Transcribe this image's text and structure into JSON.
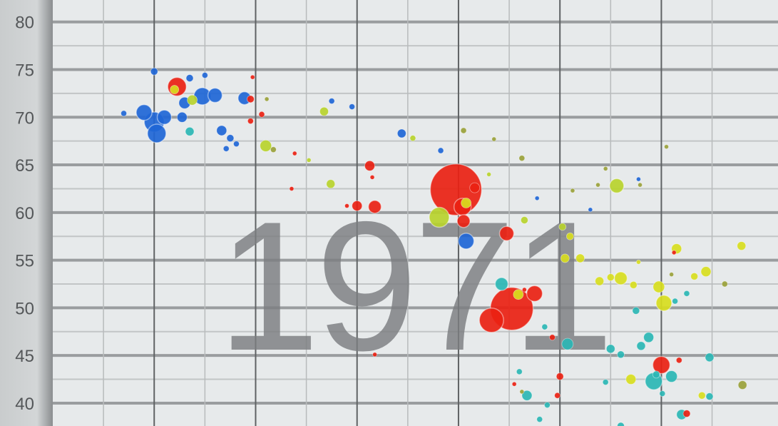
{
  "chart_data": {
    "type": "scatter",
    "year_label": "1971",
    "y_ticks": [
      "80",
      "75",
      "70",
      "65",
      "60",
      "55",
      "50",
      "45",
      "40"
    ],
    "ylim": [
      37.6,
      82.3
    ],
    "xlim": [
      0,
      14.3
    ],
    "grid": true,
    "colors": {
      "blue": "#1f66d6",
      "red": "#ea2112",
      "yellow": "#d8dd1e",
      "lime": "#b8d22c",
      "teal": "#2bb6b4",
      "olive": "#9aa13a"
    },
    "points": [
      {
        "x": 1.8,
        "y": 70.5,
        "r": 11,
        "c": "blue"
      },
      {
        "x": 2.0,
        "y": 69.5,
        "r": 14,
        "c": "blue"
      },
      {
        "x": 2.05,
        "y": 68.3,
        "r": 13,
        "c": "blue"
      },
      {
        "x": 2.2,
        "y": 70.0,
        "r": 10,
        "c": "blue"
      },
      {
        "x": 2.45,
        "y": 73.2,
        "r": 13,
        "c": "red"
      },
      {
        "x": 2.4,
        "y": 72.9,
        "r": 6,
        "c": "yellow"
      },
      {
        "x": 2.6,
        "y": 71.5,
        "r": 8,
        "c": "blue"
      },
      {
        "x": 2.75,
        "y": 71.8,
        "r": 7,
        "c": "lime"
      },
      {
        "x": 2.95,
        "y": 72.2,
        "r": 12,
        "c": "blue"
      },
      {
        "x": 3.2,
        "y": 72.3,
        "r": 10,
        "c": "blue"
      },
      {
        "x": 2.55,
        "y": 70.0,
        "r": 7,
        "c": "blue"
      },
      {
        "x": 2.7,
        "y": 68.5,
        "r": 6,
        "c": "teal"
      },
      {
        "x": 1.4,
        "y": 70.4,
        "r": 4,
        "c": "blue"
      },
      {
        "x": 2.0,
        "y": 74.8,
        "r": 5,
        "c": "blue"
      },
      {
        "x": 2.7,
        "y": 74.1,
        "r": 5,
        "c": "blue"
      },
      {
        "x": 3.0,
        "y": 74.4,
        "r": 4,
        "c": "blue"
      },
      {
        "x": 3.78,
        "y": 72.0,
        "r": 9,
        "c": "blue"
      },
      {
        "x": 3.9,
        "y": 71.9,
        "r": 5,
        "c": "red"
      },
      {
        "x": 4.22,
        "y": 71.9,
        "r": 3,
        "c": "olive"
      },
      {
        "x": 3.33,
        "y": 68.6,
        "r": 7,
        "c": "blue"
      },
      {
        "x": 3.5,
        "y": 67.8,
        "r": 5,
        "c": "blue"
      },
      {
        "x": 3.62,
        "y": 67.2,
        "r": 4,
        "c": "blue"
      },
      {
        "x": 3.42,
        "y": 66.7,
        "r": 4,
        "c": "blue"
      },
      {
        "x": 3.9,
        "y": 69.6,
        "r": 4,
        "c": "red"
      },
      {
        "x": 4.12,
        "y": 70.3,
        "r": 4,
        "c": "red"
      },
      {
        "x": 4.2,
        "y": 67.0,
        "r": 8,
        "c": "lime"
      },
      {
        "x": 4.35,
        "y": 66.6,
        "r": 4,
        "c": "olive"
      },
      {
        "x": 3.94,
        "y": 74.2,
        "r": 3,
        "c": "red"
      },
      {
        "x": 5.35,
        "y": 70.6,
        "r": 6,
        "c": "lime"
      },
      {
        "x": 5.5,
        "y": 71.7,
        "r": 4,
        "c": "blue"
      },
      {
        "x": 5.9,
        "y": 71.1,
        "r": 4,
        "c": "blue"
      },
      {
        "x": 4.77,
        "y": 66.2,
        "r": 3,
        "c": "red"
      },
      {
        "x": 5.05,
        "y": 65.5,
        "r": 3,
        "c": "lime"
      },
      {
        "x": 4.71,
        "y": 62.5,
        "r": 3,
        "c": "red"
      },
      {
        "x": 5.48,
        "y": 63.0,
        "r": 6,
        "c": "lime"
      },
      {
        "x": 5.8,
        "y": 60.7,
        "r": 3,
        "c": "red"
      },
      {
        "x": 6.0,
        "y": 60.7,
        "r": 7,
        "c": "red"
      },
      {
        "x": 6.35,
        "y": 60.6,
        "r": 9,
        "c": "red"
      },
      {
        "x": 6.25,
        "y": 64.9,
        "r": 7,
        "c": "red"
      },
      {
        "x": 6.3,
        "y": 63.7,
        "r": 3,
        "c": "red"
      },
      {
        "x": 6.35,
        "y": 45.1,
        "r": 3,
        "c": "red"
      },
      {
        "x": 6.88,
        "y": 68.3,
        "r": 6,
        "c": "blue"
      },
      {
        "x": 7.1,
        "y": 67.8,
        "r": 4,
        "c": "lime"
      },
      {
        "x": 7.65,
        "y": 66.5,
        "r": 4,
        "c": "blue"
      },
      {
        "x": 7.95,
        "y": 62.4,
        "r": 36,
        "c": "red"
      },
      {
        "x": 8.08,
        "y": 60.6,
        "r": 12,
        "c": "red"
      },
      {
        "x": 7.62,
        "y": 59.5,
        "r": 14,
        "c": "lime"
      },
      {
        "x": 8.15,
        "y": 61.0,
        "r": 7,
        "c": "yellow"
      },
      {
        "x": 8.1,
        "y": 59.1,
        "r": 9,
        "c": "red"
      },
      {
        "x": 8.32,
        "y": 62.6,
        "r": 7,
        "c": "red"
      },
      {
        "x": 8.15,
        "y": 57.0,
        "r": 11,
        "c": "blue"
      },
      {
        "x": 8.1,
        "y": 68.6,
        "r": 4,
        "c": "olive"
      },
      {
        "x": 8.6,
        "y": 64.0,
        "r": 3,
        "c": "lime"
      },
      {
        "x": 8.7,
        "y": 67.7,
        "r": 3,
        "c": "olive"
      },
      {
        "x": 8.95,
        "y": 57.8,
        "r": 10,
        "c": "red"
      },
      {
        "x": 8.85,
        "y": 52.5,
        "r": 9,
        "c": "teal"
      },
      {
        "x": 9.3,
        "y": 51.9,
        "r": 3,
        "c": "red"
      },
      {
        "x": 9.05,
        "y": 49.9,
        "r": 30,
        "c": "red"
      },
      {
        "x": 8.65,
        "y": 48.7,
        "r": 17,
        "c": "red"
      },
      {
        "x": 9.5,
        "y": 51.5,
        "r": 11,
        "c": "red"
      },
      {
        "x": 9.18,
        "y": 51.4,
        "r": 7,
        "c": "yellow"
      },
      {
        "x": 9.3,
        "y": 59.2,
        "r": 5,
        "c": "lime"
      },
      {
        "x": 9.25,
        "y": 65.7,
        "r": 4,
        "c": "olive"
      },
      {
        "x": 9.55,
        "y": 61.5,
        "r": 3,
        "c": "blue"
      },
      {
        "x": 9.7,
        "y": 48.0,
        "r": 4,
        "c": "teal"
      },
      {
        "x": 9.85,
        "y": 46.9,
        "r": 4,
        "c": "red"
      },
      {
        "x": 10.15,
        "y": 46.2,
        "r": 8,
        "c": "teal"
      },
      {
        "x": 9.1,
        "y": 42.0,
        "r": 3,
        "c": "red"
      },
      {
        "x": 9.25,
        "y": 41.2,
        "r": 3,
        "c": "olive"
      },
      {
        "x": 9.35,
        "y": 40.8,
        "r": 7,
        "c": "teal"
      },
      {
        "x": 9.2,
        "y": 43.3,
        "r": 4,
        "c": "teal"
      },
      {
        "x": 9.6,
        "y": 38.3,
        "r": 4,
        "c": "teal"
      },
      {
        "x": 9.75,
        "y": 39.8,
        "r": 4,
        "c": "teal"
      },
      {
        "x": 10.0,
        "y": 42.8,
        "r": 5,
        "c": "red"
      },
      {
        "x": 9.95,
        "y": 40.8,
        "r": 4,
        "c": "red"
      },
      {
        "x": 10.25,
        "y": 62.3,
        "r": 3,
        "c": "olive"
      },
      {
        "x": 10.05,
        "y": 58.5,
        "r": 5,
        "c": "lime"
      },
      {
        "x": 10.2,
        "y": 57.5,
        "r": 5,
        "c": "yellow"
      },
      {
        "x": 10.1,
        "y": 55.2,
        "r": 6,
        "c": "yellow"
      },
      {
        "x": 10.4,
        "y": 55.2,
        "r": 6,
        "c": "yellow"
      },
      {
        "x": 10.6,
        "y": 60.3,
        "r": 3,
        "c": "blue"
      },
      {
        "x": 10.75,
        "y": 62.9,
        "r": 3,
        "c": "olive"
      },
      {
        "x": 10.9,
        "y": 64.6,
        "r": 3,
        "c": "olive"
      },
      {
        "x": 11.12,
        "y": 62.8,
        "r": 10,
        "c": "lime"
      },
      {
        "x": 10.78,
        "y": 52.8,
        "r": 6,
        "c": "yellow"
      },
      {
        "x": 11.0,
        "y": 53.2,
        "r": 5,
        "c": "yellow"
      },
      {
        "x": 11.2,
        "y": 53.1,
        "r": 9,
        "c": "yellow"
      },
      {
        "x": 11.45,
        "y": 52.4,
        "r": 5,
        "c": "yellow"
      },
      {
        "x": 11.55,
        "y": 54.8,
        "r": 3,
        "c": "yellow"
      },
      {
        "x": 11.55,
        "y": 63.5,
        "r": 3,
        "c": "blue"
      },
      {
        "x": 11.58,
        "y": 62.9,
        "r": 3,
        "c": "olive"
      },
      {
        "x": 11.95,
        "y": 52.2,
        "r": 8,
        "c": "yellow"
      },
      {
        "x": 12.05,
        "y": 50.5,
        "r": 11,
        "c": "yellow"
      },
      {
        "x": 12.27,
        "y": 50.7,
        "r": 4,
        "c": "teal"
      },
      {
        "x": 12.2,
        "y": 53.5,
        "r": 3,
        "c": "olive"
      },
      {
        "x": 12.25,
        "y": 55.8,
        "r": 3,
        "c": "red"
      },
      {
        "x": 12.3,
        "y": 56.2,
        "r": 7,
        "c": "yellow"
      },
      {
        "x": 12.5,
        "y": 51.5,
        "r": 4,
        "c": "teal"
      },
      {
        "x": 12.65,
        "y": 53.3,
        "r": 5,
        "c": "yellow"
      },
      {
        "x": 12.88,
        "y": 53.8,
        "r": 7,
        "c": "yellow"
      },
      {
        "x": 13.25,
        "y": 52.5,
        "r": 4,
        "c": "olive"
      },
      {
        "x": 13.58,
        "y": 56.5,
        "r": 6,
        "c": "yellow"
      },
      {
        "x": 11.5,
        "y": 49.7,
        "r": 5,
        "c": "teal"
      },
      {
        "x": 11.0,
        "y": 45.7,
        "r": 6,
        "c": "teal"
      },
      {
        "x": 11.2,
        "y": 45.1,
        "r": 5,
        "c": "teal"
      },
      {
        "x": 11.6,
        "y": 46.0,
        "r": 6,
        "c": "teal"
      },
      {
        "x": 11.75,
        "y": 46.9,
        "r": 7,
        "c": "teal"
      },
      {
        "x": 11.4,
        "y": 42.5,
        "r": 7,
        "c": "yellow"
      },
      {
        "x": 11.9,
        "y": 43.0,
        "r": 5,
        "c": "teal"
      },
      {
        "x": 11.85,
        "y": 42.3,
        "r": 12,
        "c": "teal"
      },
      {
        "x": 12.0,
        "y": 44.0,
        "r": 12,
        "c": "red"
      },
      {
        "x": 12.2,
        "y": 42.8,
        "r": 8,
        "c": "teal"
      },
      {
        "x": 12.35,
        "y": 44.5,
        "r": 4,
        "c": "red"
      },
      {
        "x": 12.95,
        "y": 44.8,
        "r": 6,
        "c": "teal"
      },
      {
        "x": 13.6,
        "y": 41.9,
        "r": 6,
        "c": "olive"
      },
      {
        "x": 12.8,
        "y": 40.8,
        "r": 5,
        "c": "yellow"
      },
      {
        "x": 12.95,
        "y": 40.7,
        "r": 5,
        "c": "teal"
      },
      {
        "x": 12.4,
        "y": 38.8,
        "r": 7,
        "c": "teal"
      },
      {
        "x": 12.5,
        "y": 38.9,
        "r": 5,
        "c": "red"
      },
      {
        "x": 11.2,
        "y": 37.6,
        "r": 5,
        "c": "teal"
      },
      {
        "x": 10.9,
        "y": 42.2,
        "r": 4,
        "c": "teal"
      },
      {
        "x": 12.02,
        "y": 41.0,
        "r": 4,
        "c": "teal"
      },
      {
        "x": 12.1,
        "y": 66.9,
        "r": 3,
        "c": "olive"
      }
    ]
  }
}
